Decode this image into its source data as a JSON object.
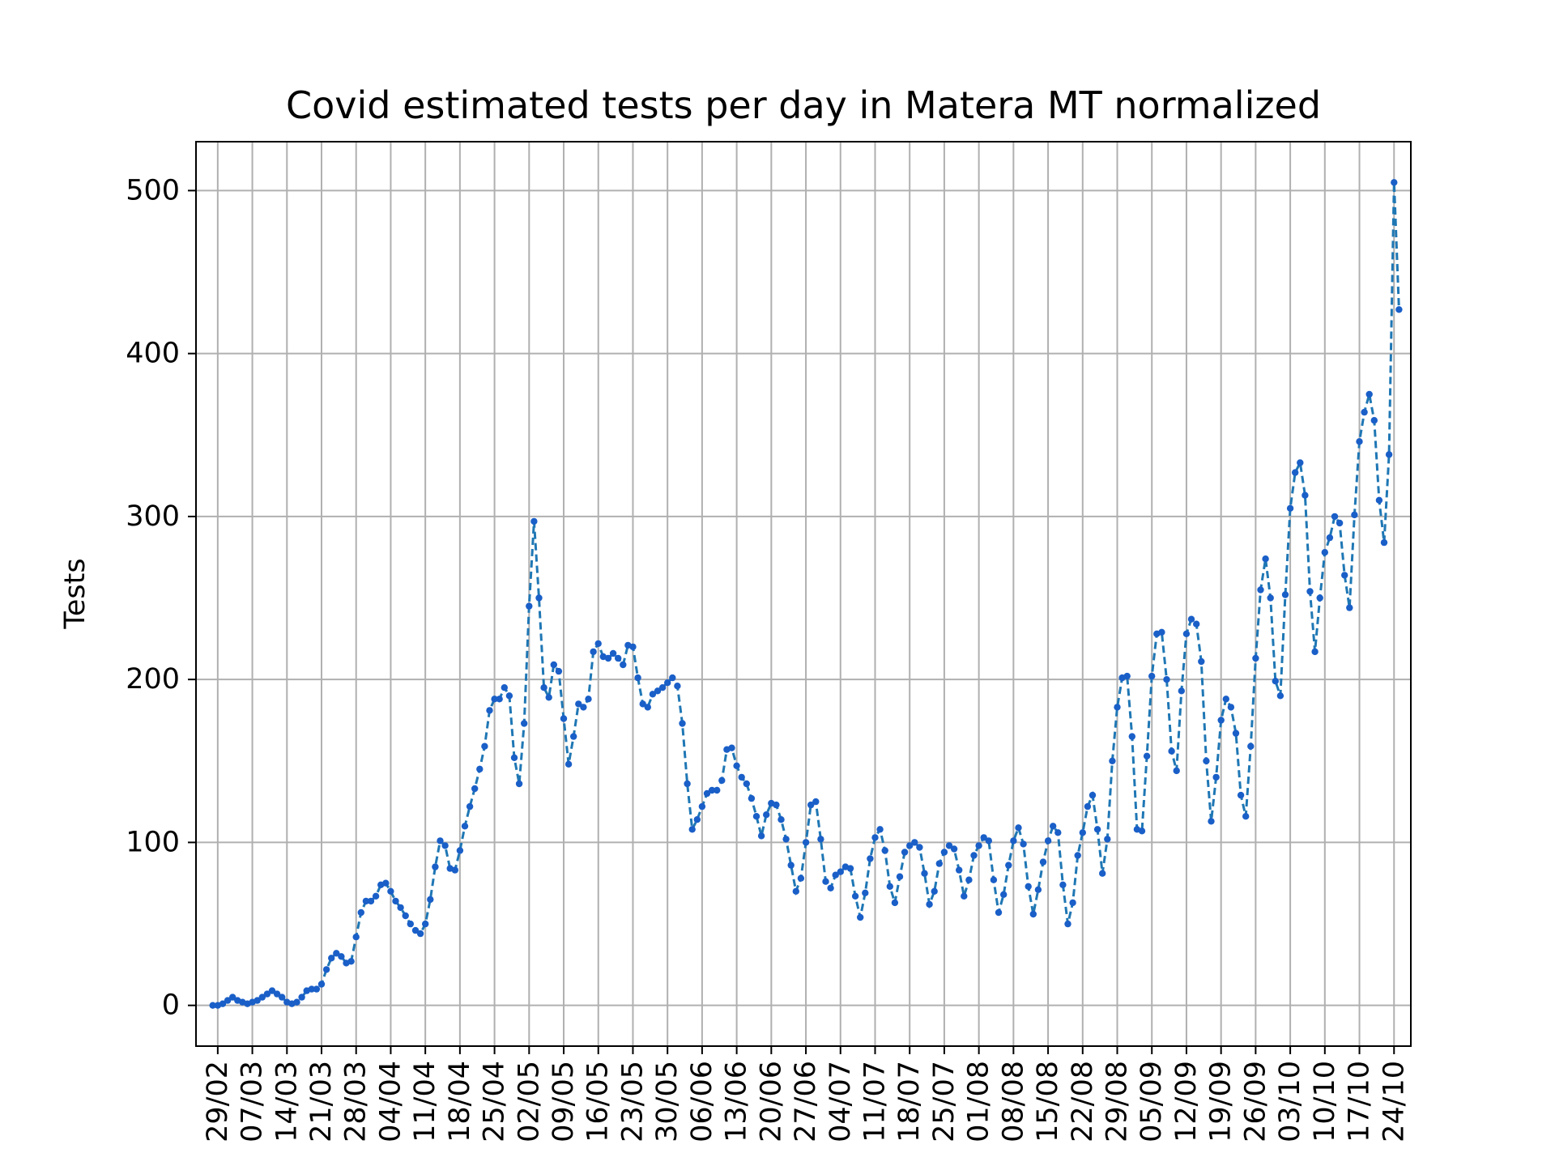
{
  "chart_data": {
    "type": "line",
    "title": "Covid estimated tests per day in Matera MT normalized",
    "xlabel": "",
    "ylabel": "Tests",
    "ylim": [
      -25,
      530
    ],
    "yticks": [
      0,
      100,
      200,
      300,
      400,
      500
    ],
    "x_start_date": "2020-02-28",
    "xticks": [
      "29/02",
      "07/03",
      "14/03",
      "21/03",
      "28/03",
      "04/04",
      "11/04",
      "18/04",
      "25/04",
      "02/05",
      "09/05",
      "16/05",
      "23/05",
      "30/05",
      "06/06",
      "13/06",
      "20/06",
      "27/06",
      "04/07",
      "11/07",
      "18/07",
      "25/07",
      "01/08",
      "08/08",
      "15/08",
      "22/08",
      "29/08",
      "05/09",
      "12/09",
      "19/09",
      "26/09",
      "03/10",
      "10/10",
      "17/10",
      "24/10"
    ],
    "grid": true,
    "line_style": "dashed",
    "colors": {
      "line": "#1f77b4",
      "marker": "#1a5fc8",
      "grid": "#b0b0b0",
      "axes": "#000000"
    },
    "series": [
      {
        "values": [
          0,
          0,
          1,
          3,
          5,
          3,
          2,
          1,
          2,
          3,
          5,
          7,
          9,
          7,
          5,
          2,
          1,
          2,
          5,
          9,
          10,
          10,
          13,
          22,
          29,
          32,
          30,
          26,
          27,
          42,
          57,
          64,
          64,
          67,
          74,
          75,
          70,
          64,
          60,
          55,
          50,
          46,
          44,
          50,
          65,
          85,
          101,
          98,
          84,
          83,
          95,
          110,
          122,
          133,
          145,
          159,
          181,
          188,
          188,
          195,
          190,
          152,
          136,
          173,
          245,
          297,
          250,
          195,
          189,
          209,
          205,
          176,
          148,
          165,
          185,
          183,
          188,
          217,
          222,
          214,
          213,
          216,
          213,
          209,
          221,
          220,
          201,
          185,
          183,
          191,
          193,
          195,
          198,
          201,
          196,
          173,
          136,
          108,
          114,
          122,
          130,
          132,
          132,
          138,
          157,
          158,
          147,
          140,
          136,
          127,
          116,
          104,
          117,
          124,
          123,
          114,
          102,
          86,
          70,
          78,
          100,
          123,
          125,
          102,
          76,
          72,
          80,
          82,
          85,
          84,
          67,
          54,
          69,
          90,
          103,
          108,
          95,
          73,
          63,
          79,
          94,
          98,
          100,
          97,
          81,
          62,
          70,
          87,
          94,
          98,
          96,
          83,
          67,
          77,
          92,
          98,
          103,
          101,
          77,
          57,
          68,
          86,
          101,
          109,
          99,
          73,
          56,
          71,
          88,
          101,
          110,
          106,
          74,
          50,
          63,
          92,
          106,
          122,
          129,
          108,
          81,
          102,
          150,
          183,
          201,
          202,
          165,
          108,
          107,
          153,
          202,
          228,
          229,
          200,
          156,
          144,
          193,
          228,
          237,
          234,
          211,
          150,
          113,
          140,
          175,
          188,
          183,
          167,
          129,
          116,
          159,
          213,
          255,
          274,
          250,
          199,
          190,
          252,
          305,
          327,
          333,
          313,
          254,
          217,
          250,
          278,
          287,
          300,
          296,
          264,
          244,
          301,
          346,
          364,
          375,
          359,
          310,
          284,
          338,
          505,
          427
        ]
      }
    ]
  }
}
